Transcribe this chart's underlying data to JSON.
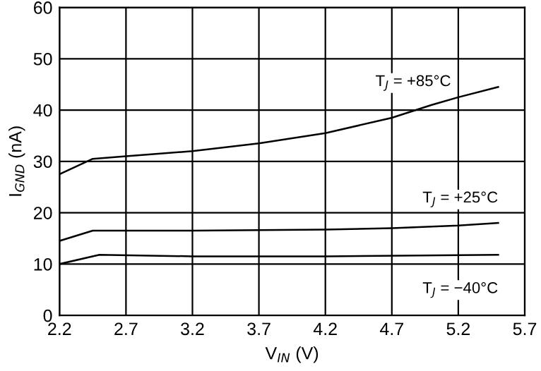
{
  "chart_data": {
    "type": "line",
    "xlabel": "V$_{IN}$ (V)",
    "ylabel": "I$_{GND}$ (nA)",
    "xlim": [
      2.2,
      5.7
    ],
    "xticks": [
      2.2,
      2.7,
      3.2,
      3.7,
      4.2,
      4.7,
      5.2,
      5.7
    ],
    "ylim": [
      0,
      60
    ],
    "yticks": [
      0,
      10,
      20,
      30,
      40,
      50,
      60
    ],
    "grid": true,
    "marker": "none",
    "line_style": "solid",
    "series": [
      {
        "name": "T$_{J}$ = +85°C",
        "color": "#000000",
        "x": [
          2.2,
          2.45,
          2.7,
          3.2,
          3.7,
          4.2,
          4.7,
          5.0,
          5.2,
          5.5
        ],
        "values": [
          27.5,
          30.5,
          31,
          32,
          33.5,
          35.5,
          38.5,
          41,
          42.5,
          44.5
        ]
      },
      {
        "name": "T$_{J}$ = +25°C",
        "color": "#000000",
        "x": [
          2.2,
          2.45,
          3.2,
          4.2,
          4.7,
          5.2,
          5.5
        ],
        "values": [
          14.5,
          16.5,
          16.5,
          16.7,
          17,
          17.5,
          18
        ]
      },
      {
        "name": "T$_{J}$ = −40°C",
        "color": "#000000",
        "x": [
          2.2,
          2.5,
          3.2,
          4.2,
          5.5
        ],
        "values": [
          10,
          11.8,
          11.5,
          11.5,
          11.8
        ]
      }
    ]
  }
}
